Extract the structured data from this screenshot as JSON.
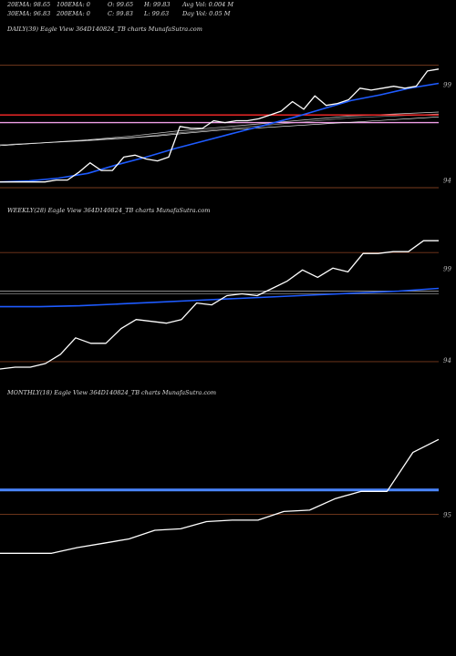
{
  "header": {
    "row1": {
      "ema20": "20EMA: 98.65",
      "ema100": "100EMA: 0",
      "open": "O: 99.65",
      "high": "H: 99.83",
      "avgvol": "Avg Vol: 0.004 M"
    },
    "row2": {
      "ema30": "30EMA: 96.83",
      "ema200": "200EMA: 0",
      "close": "C: 99.83",
      "low": "L: 99.63",
      "dayvol": "Day Vol: 0.05 M"
    }
  },
  "chart_data": [
    {
      "type": "line",
      "label": "DAILY(39) Eagle  View  364D140824_TB charts MunafaSutra.com",
      "ylim": [
        93.6,
        101.6
      ],
      "y_ticks": [
        99,
        94
      ],
      "price": [
        93.9,
        93.9,
        93.9,
        93.9,
        93.9,
        94.0,
        94.0,
        94.4,
        94.9,
        94.5,
        94.5,
        95.2,
        95.3,
        95.1,
        95.0,
        95.2,
        96.8,
        96.7,
        96.7,
        97.1,
        97.0,
        97.1,
        97.1,
        97.2,
        97.4,
        97.6,
        98.1,
        97.7,
        98.4,
        97.9,
        98.0,
        98.2,
        98.8,
        98.7,
        98.8,
        98.9,
        98.8,
        98.9,
        99.7,
        99.8
      ],
      "ema_fast": [
        93.9,
        93.95,
        94.1,
        94.35,
        94.8,
        95.2,
        95.65,
        96.05,
        96.45,
        96.85,
        97.25,
        97.7,
        98.15,
        98.45,
        98.8,
        99.05
      ],
      "ema_slow": [
        95.8,
        95.9,
        96.0,
        96.1,
        96.2,
        96.3,
        96.45,
        96.6,
        96.7,
        96.8,
        96.9,
        97.0,
        97.1,
        97.2,
        97.3
      ],
      "ma_grey1": [
        95.8,
        95.95,
        96.1,
        96.3,
        96.55,
        96.75,
        96.95,
        97.15,
        97.35,
        97.45,
        97.55
      ],
      "ma_grey2": [
        95.85,
        95.95,
        96.05,
        96.2,
        96.45,
        96.65,
        96.85,
        97.05,
        97.25,
        97.35,
        97.45
      ],
      "hlines": {
        "red": 97.4,
        "pink": 97.0,
        "brown_top": 100.0,
        "brown_bottom": 93.6
      }
    },
    {
      "type": "line",
      "label": "WEEKLY(28) Eagle  View  364D140824_TB charts MunafaSutra.com",
      "ylim": [
        93.5,
        101.8
      ],
      "y_ticks": [
        99,
        94
      ],
      "price": [
        93.5,
        93.6,
        93.6,
        93.8,
        94.3,
        95.2,
        94.9,
        94.9,
        95.7,
        96.2,
        96.1,
        96.0,
        96.2,
        97.1,
        97.0,
        97.5,
        97.6,
        97.5,
        97.9,
        98.3,
        98.9,
        98.5,
        99.0,
        98.8,
        99.8,
        99.8,
        99.9,
        99.9,
        100.5,
        100.5
      ],
      "ema": [
        96.9,
        96.9,
        96.95,
        97.05,
        97.15,
        97.25,
        97.35,
        97.45,
        97.55,
        97.65,
        97.75,
        97.9
      ],
      "hlines": {
        "brown_top": 99.85,
        "grey1": 97.75,
        "grey2": 97.6,
        "brown_bottom": 93.9
      }
    },
    {
      "type": "line",
      "label": "MONTHLY(18) Eagle  View  364D140824_TB charts MunafaSutra.com",
      "ylim": [
        91.5,
        103.0
      ],
      "y_ticks": [
        95
      ],
      "price": [
        92.3,
        92.3,
        92.3,
        92.7,
        93.0,
        93.3,
        93.9,
        94.0,
        94.5,
        94.6,
        94.6,
        95.2,
        95.3,
        96.1,
        96.6,
        96.6,
        99.3,
        100.2
      ],
      "hlines": {
        "blue": 96.7,
        "brown": 95.0
      }
    }
  ]
}
